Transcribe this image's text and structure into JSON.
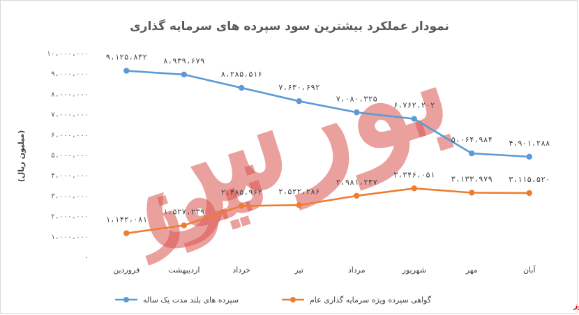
{
  "chart_data": {
    "type": "line",
    "title": "نمودار عملکرد بیشترین سود سپرده های سرمایه گذاری",
    "ylabel": "(میلیون ریال)",
    "xlabel": "",
    "ylim": [
      0,
      10000000
    ],
    "yticks": [
      0,
      1000000,
      2000000,
      3000000,
      4000000,
      5000000,
      6000000,
      7000000,
      8000000,
      9000000,
      10000000
    ],
    "ytick_labels": [
      "۰",
      "۱،۰۰۰،۰۰۰",
      "۲،۰۰۰،۰۰۰",
      "۳،۰۰۰،۰۰۰",
      "۴،۰۰۰،۰۰۰",
      "۵،۰۰۰،۰۰۰",
      "۶،۰۰۰،۰۰۰",
      "۷،۰۰۰،۰۰۰",
      "۸،۰۰۰،۰۰۰",
      "۹،۰۰۰،۰۰۰",
      "۱۰،۰۰۰،۰۰۰"
    ],
    "categories": [
      "فروردین",
      "اردیبهشت",
      "خرداد",
      "تیر",
      "مرداد",
      "شهریور",
      "مهر",
      "آبان"
    ],
    "grid": false,
    "legend_position": "bottom",
    "series": [
      {
        "name": "سپرده های بلند مدت یک ساله",
        "color": "#5b9bd5",
        "values": [
          9125832,
          8939679,
          8285516,
          7630692,
          7080325,
          6762202,
          5064984,
          4901288
        ],
        "labels": [
          "۹،۱۲۵،۸۳۲",
          "۸،۹۳۹،۶۷۹",
          "۸،۲۸۵،۵۱۶",
          "۷،۶۳۰،۶۹۲",
          "۷،۰۸۰،۳۲۵",
          "۶،۷۶۲،۲۰۲",
          "۵،۰۶۴،۹۸۴",
          "۴،۹۰۱،۲۸۸"
        ]
      },
      {
        "name": "گواهی سپرده ویژه سرمایه گذاری عام",
        "color": "#ed7d31",
        "values": [
          1142081,
          1527239,
          2485962,
          2522286,
          2981237,
          3346051,
          3133979,
          3115520
        ],
        "labels": [
          "۱،۱۴۲،۰۸۱",
          "۱،۵۲۷،۲۳۹",
          "۲،۴۸۵،۹۶۲",
          "۲،۵۲۲،۲۸۶",
          "۲،۹۸۱،۲۳۷",
          "۳،۳۴۶،۰۵۱",
          "۳،۱۳۳،۹۷۹",
          "۳،۱۱۵،۵۲۰"
        ]
      }
    ]
  },
  "watermark": {
    "line1": "بورس",
    "line2": "نیوز",
    "color": "#d9534f"
  },
  "brand": {
    "text": "بورس نیوز",
    "color": "#e00000"
  }
}
